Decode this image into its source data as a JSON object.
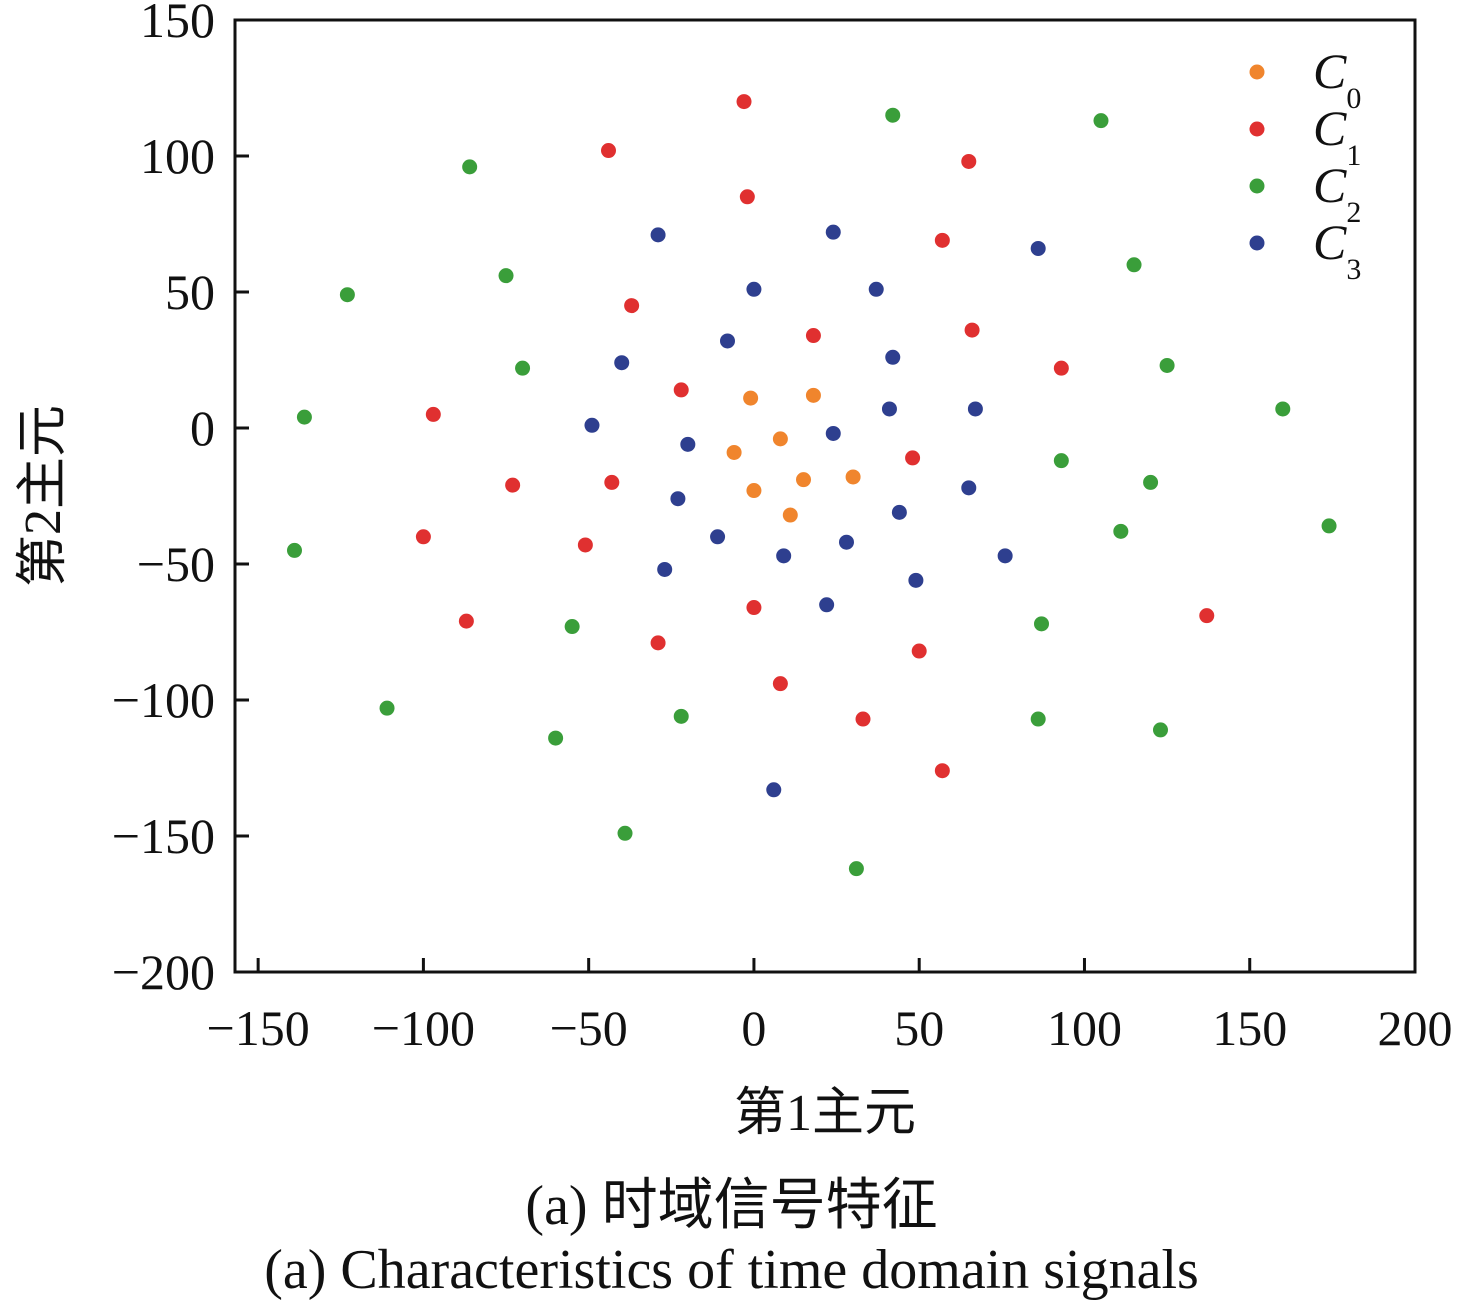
{
  "chart_data": {
    "type": "scatter",
    "xlabel": "第1主元",
    "ylabel": "第2主元",
    "xlim": [
      -157,
      200
    ],
    "ylim": [
      -200,
      150
    ],
    "xticks": [
      -150,
      -100,
      -50,
      0,
      50,
      100,
      150,
      200
    ],
    "yticks": [
      -200,
      -150,
      -100,
      -50,
      0,
      50,
      100,
      150
    ],
    "xtick_labels": [
      "−150",
      "−100",
      "−50",
      "0",
      "50",
      "100",
      "150",
      "200"
    ],
    "ytick_labels": [
      "−200",
      "−150",
      "−100",
      "−50",
      "0",
      "50",
      "100",
      "150"
    ],
    "grid": false,
    "legend_position": "top-right",
    "series": [
      {
        "name": "C0",
        "label_main": "C",
        "label_sub": "0",
        "color": "#f0852d",
        "points": [
          [
            -1,
            11
          ],
          [
            18,
            12
          ],
          [
            8,
            -4
          ],
          [
            -6,
            -9
          ],
          [
            0,
            -23
          ],
          [
            15,
            -19
          ],
          [
            30,
            -18
          ],
          [
            11,
            -32
          ]
        ]
      },
      {
        "name": "C1",
        "label_main": "C",
        "label_sub": "1",
        "color": "#e03030",
        "points": [
          [
            -3,
            120
          ],
          [
            -44,
            102
          ],
          [
            -2,
            85
          ],
          [
            65,
            98
          ],
          [
            57,
            69
          ],
          [
            -37,
            45
          ],
          [
            18,
            34
          ],
          [
            66,
            36
          ],
          [
            93,
            22
          ],
          [
            -22,
            14
          ],
          [
            -97,
            5
          ],
          [
            48,
            -11
          ],
          [
            -73,
            -21
          ],
          [
            -43,
            -20
          ],
          [
            -51,
            -43
          ],
          [
            -100,
            -40
          ],
          [
            -87,
            -71
          ],
          [
            -29,
            -79
          ],
          [
            0,
            -66
          ],
          [
            50,
            -82
          ],
          [
            8,
            -94
          ],
          [
            33,
            -107
          ],
          [
            57,
            -126
          ],
          [
            137,
            -69
          ]
        ]
      },
      {
        "name": "C2",
        "label_main": "C",
        "label_sub": "2",
        "color": "#3a9e3a",
        "points": [
          [
            42,
            115
          ],
          [
            105,
            113
          ],
          [
            -86,
            96
          ],
          [
            -75,
            56
          ],
          [
            -123,
            49
          ],
          [
            115,
            60
          ],
          [
            -70,
            22
          ],
          [
            125,
            23
          ],
          [
            -136,
            4
          ],
          [
            160,
            7
          ],
          [
            93,
            -12
          ],
          [
            120,
            -20
          ],
          [
            174,
            -36
          ],
          [
            111,
            -38
          ],
          [
            -139,
            -45
          ],
          [
            87,
            -72
          ],
          [
            -55,
            -73
          ],
          [
            -111,
            -103
          ],
          [
            -22,
            -106
          ],
          [
            86,
            -107
          ],
          [
            123,
            -111
          ],
          [
            -60,
            -114
          ],
          [
            -39,
            -149
          ],
          [
            31,
            -162
          ]
        ]
      },
      {
        "name": "C3",
        "label_main": "C",
        "label_sub": "3",
        "color": "#2e3f8f",
        "points": [
          [
            -29,
            71
          ],
          [
            24,
            72
          ],
          [
            86,
            66
          ],
          [
            0,
            51
          ],
          [
            37,
            51
          ],
          [
            -8,
            32
          ],
          [
            -40,
            24
          ],
          [
            42,
            26
          ],
          [
            41,
            7
          ],
          [
            67,
            7
          ],
          [
            -49,
            1
          ],
          [
            24,
            -2
          ],
          [
            -20,
            -6
          ],
          [
            -23,
            -26
          ],
          [
            65,
            -22
          ],
          [
            44,
            -31
          ],
          [
            -11,
            -40
          ],
          [
            28,
            -42
          ],
          [
            9,
            -47
          ],
          [
            76,
            -47
          ],
          [
            -27,
            -52
          ],
          [
            49,
            -56
          ],
          [
            22,
            -65
          ],
          [
            6,
            -133
          ]
        ]
      }
    ]
  },
  "caption_zh": "(a)  时域信号特征",
  "caption_en": "(a)  Characteristics of time domain signals"
}
